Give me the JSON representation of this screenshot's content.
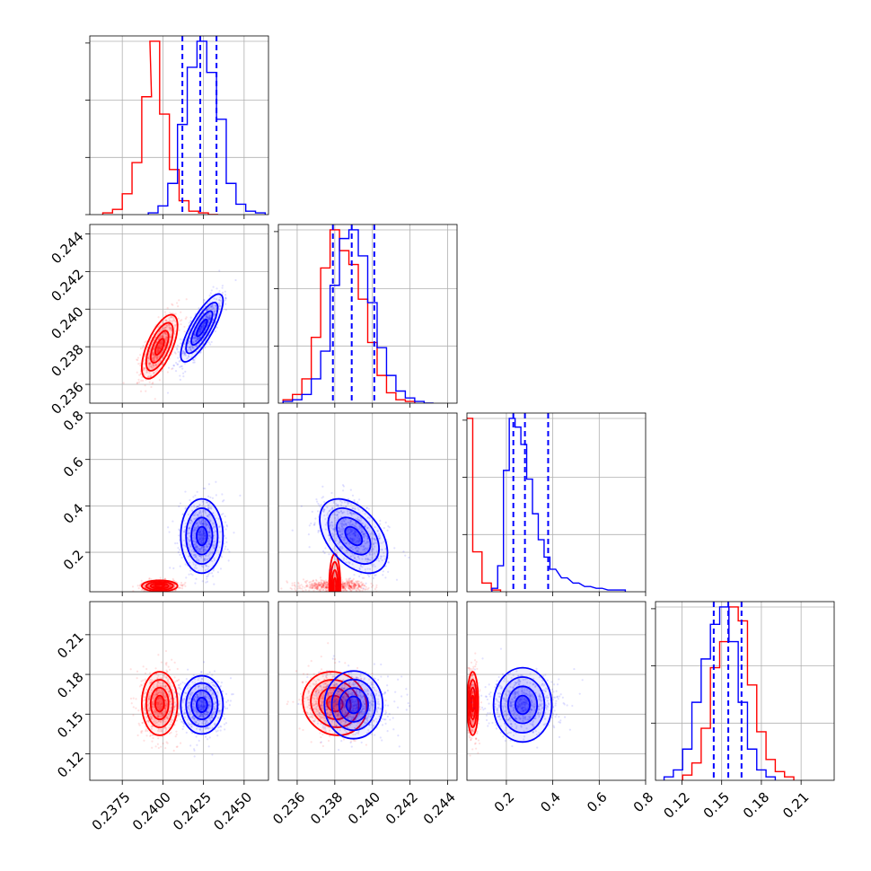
{
  "chart_data": {
    "type": "corner",
    "colors": {
      "series_a": "#ff0000",
      "series_b": "#0000ff"
    },
    "grid": true,
    "params": [
      {
        "range": [
          0.2355,
          0.2465
        ],
        "ticks": [
          "0.2375",
          "0.2400",
          "0.2425",
          "0.2450"
        ],
        "tick_values": [
          0.2375,
          0.24,
          0.2425,
          0.245
        ]
      },
      {
        "range": [
          0.235,
          0.2445
        ],
        "ticks": [
          "0.236",
          "0.238",
          "0.240",
          "0.242",
          "0.244"
        ],
        "tick_values": [
          0.236,
          0.238,
          0.24,
          0.242,
          0.244
        ]
      },
      {
        "range": [
          0.03,
          0.8
        ],
        "ticks": [
          "0.2",
          "0.4",
          "0.6",
          "0.8"
        ],
        "tick_values": [
          0.2,
          0.4,
          0.6,
          0.8
        ]
      },
      {
        "range": [
          0.1,
          0.235
        ],
        "ticks": [
          "0.12",
          "0.15",
          "0.18",
          "0.21"
        ],
        "tick_values": [
          0.12,
          0.15,
          0.18,
          0.21
        ]
      }
    ],
    "series": [
      {
        "color": "#ff0000",
        "means": [
          0.2398,
          0.238,
          0.055,
          0.158
        ],
        "sds": [
          0.00055,
          0.00085,
          0.012,
          0.012
        ],
        "corr": {
          "0-1": 0.65,
          "0-2": 0.0,
          "0-3": 0.0,
          "1-2": 0.0,
          "1-3": -0.1,
          "2-3": 0.0
        },
        "histograms": [
          {
            "x": [
              0.2366,
              0.2372,
              0.2378,
              0.2384,
              0.239,
              0.2395,
              0.2401,
              0.2407,
              0.2413,
              0.2419,
              0.2425,
              0.2431
            ],
            "y": [
              0.01,
              0.03,
              0.12,
              0.3,
              0.68,
              1.0,
              0.58,
              0.26,
              0.08,
              0.02,
              0.01,
              0.0
            ]
          },
          {
            "x": [
              0.2355,
              0.236,
              0.2365,
              0.237,
              0.2375,
              0.238,
              0.2385,
              0.239,
              0.2395,
              0.24,
              0.2405,
              0.241,
              0.2415,
              0.242
            ],
            "y": [
              0.02,
              0.05,
              0.14,
              0.38,
              0.78,
              1.0,
              0.88,
              0.8,
              0.6,
              0.35,
              0.16,
              0.06,
              0.02,
              0.01
            ]
          },
          {
            "x": [
              0.035,
              0.075,
              0.115,
              0.155
            ],
            "y": [
              1.0,
              0.23,
              0.05,
              0.01
            ]
          },
          {
            "x": [
              0.124,
              0.131,
              0.138,
              0.145,
              0.152,
              0.159,
              0.166,
              0.173,
              0.18,
              0.187,
              0.194,
              0.201
            ],
            "y": [
              0.03,
              0.1,
              0.3,
              0.65,
              0.8,
              1.0,
              0.92,
              0.55,
              0.28,
              0.12,
              0.05,
              0.02
            ]
          }
        ]
      },
      {
        "color": "#0000ff",
        "means": [
          0.2424,
          0.239,
          0.27,
          0.157
        ],
        "sds": [
          0.00065,
          0.0009,
          0.08,
          0.011
        ],
        "corr": {
          "0-1": 0.8,
          "0-2": 0.0,
          "0-3": 0.0,
          "1-2": -0.45,
          "1-3": 0.0,
          "2-3": 0.0
        },
        "histograms": [
          {
            "x": [
              0.2394,
              0.24,
              0.2406,
              0.2412,
              0.2418,
              0.2424,
              0.243,
              0.2436,
              0.2442,
              0.2448,
              0.2454,
              0.246
            ],
            "y": [
              0.01,
              0.05,
              0.18,
              0.52,
              0.85,
              1.0,
              0.82,
              0.55,
              0.18,
              0.06,
              0.02,
              0.01
            ]
          },
          {
            "x": [
              0.2355,
              0.236,
              0.2365,
              0.237,
              0.2375,
              0.238,
              0.2385,
              0.239,
              0.2395,
              0.24,
              0.2405,
              0.241,
              0.2415,
              0.242,
              0.2425,
              0.243
            ],
            "y": [
              0.01,
              0.02,
              0.05,
              0.14,
              0.3,
              0.68,
              0.95,
              1.0,
              0.85,
              0.58,
              0.32,
              0.16,
              0.07,
              0.03,
              0.01,
              0.0
            ]
          },
          {
            "x": [
              0.15,
              0.175,
              0.2,
              0.225,
              0.25,
              0.275,
              0.3,
              0.325,
              0.35,
              0.375,
              0.4,
              0.45,
              0.5,
              0.55,
              0.6,
              0.65,
              0.7
            ],
            "y": [
              0.02,
              0.15,
              0.7,
              1.0,
              0.95,
              0.85,
              0.65,
              0.45,
              0.3,
              0.2,
              0.13,
              0.08,
              0.05,
              0.03,
              0.02,
              0.01,
              0.01
            ]
          },
          {
            "x": [
              0.11,
              0.117,
              0.124,
              0.131,
              0.138,
              0.145,
              0.152,
              0.159,
              0.166,
              0.173,
              0.18,
              0.187
            ],
            "y": [
              0.02,
              0.06,
              0.18,
              0.45,
              0.7,
              0.9,
              1.0,
              0.8,
              0.45,
              0.18,
              0.06,
              0.02
            ]
          }
        ],
        "quantiles": [
          [
            0.2412,
            0.2423,
            0.2433
          ],
          [
            0.2379,
            0.2389,
            0.2401
          ],
          [
            0.23,
            0.28,
            0.38
          ],
          [
            0.144,
            0.155,
            0.165
          ]
        ]
      }
    ]
  }
}
